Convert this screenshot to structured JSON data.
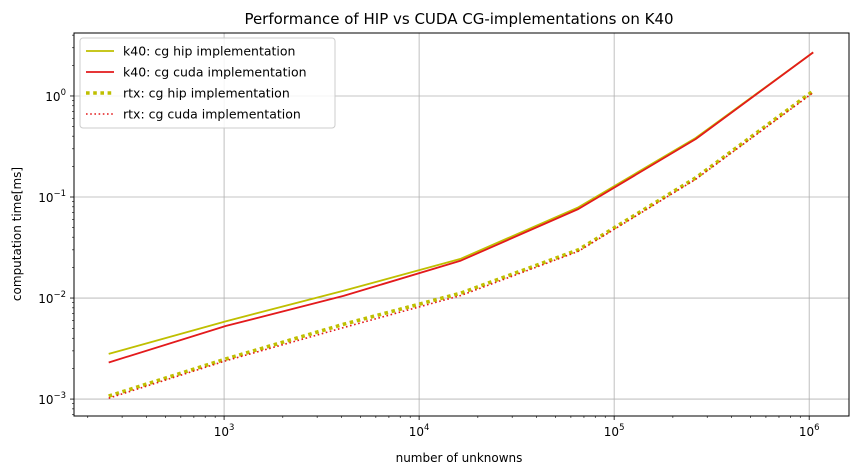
{
  "chart_data": {
    "type": "line",
    "title": "Performance of HIP vs CUDA CG-implementations on K40",
    "xlabel": "number of unknowns",
    "ylabel": "computation time[ms]",
    "x_scale": "log",
    "y_scale": "log",
    "xlim": [
      170,
      1600000
    ],
    "ylim": [
      0.00068,
      4.2
    ],
    "x_ticks": [
      {
        "value": 1000,
        "base": "10",
        "exp": "3"
      },
      {
        "value": 10000,
        "base": "10",
        "exp": "4"
      },
      {
        "value": 100000,
        "base": "10",
        "exp": "5"
      },
      {
        "value": 1000000,
        "base": "10",
        "exp": "6"
      }
    ],
    "y_ticks": [
      {
        "value": 0.001,
        "base": "10",
        "exp": "−3"
      },
      {
        "value": 0.01,
        "base": "10",
        "exp": "−2"
      },
      {
        "value": 0.1,
        "base": "10",
        "exp": "−1"
      },
      {
        "value": 1,
        "base": "10",
        "exp": "0"
      }
    ],
    "grid": true,
    "legend_position": "top-left",
    "x": [
      256,
      1024,
      4096,
      16384,
      65536,
      262144,
      1048576
    ],
    "series": [
      {
        "name": "k40: cg hip implementation",
        "color": "#bfbf00",
        "style": "solid",
        "values": [
          0.0028,
          0.0059,
          0.0118,
          0.0245,
          0.079,
          0.385,
          2.7
        ]
      },
      {
        "name": "k40: cg cuda implementation",
        "color": "#e31a1c",
        "style": "solid",
        "values": [
          0.0023,
          0.0053,
          0.0105,
          0.0235,
          0.076,
          0.375,
          2.7
        ]
      },
      {
        "name": "rtx: cg hip implementation",
        "color": "#bfbf00",
        "style": "dotted-thick",
        "values": [
          0.00107,
          0.0025,
          0.0055,
          0.0112,
          0.03,
          0.155,
          1.12
        ]
      },
      {
        "name": "rtx: cg cuda implementation",
        "color": "#e31a1c",
        "style": "dotted",
        "values": [
          0.00102,
          0.0024,
          0.0051,
          0.0106,
          0.029,
          0.15,
          1.08
        ]
      }
    ]
  }
}
